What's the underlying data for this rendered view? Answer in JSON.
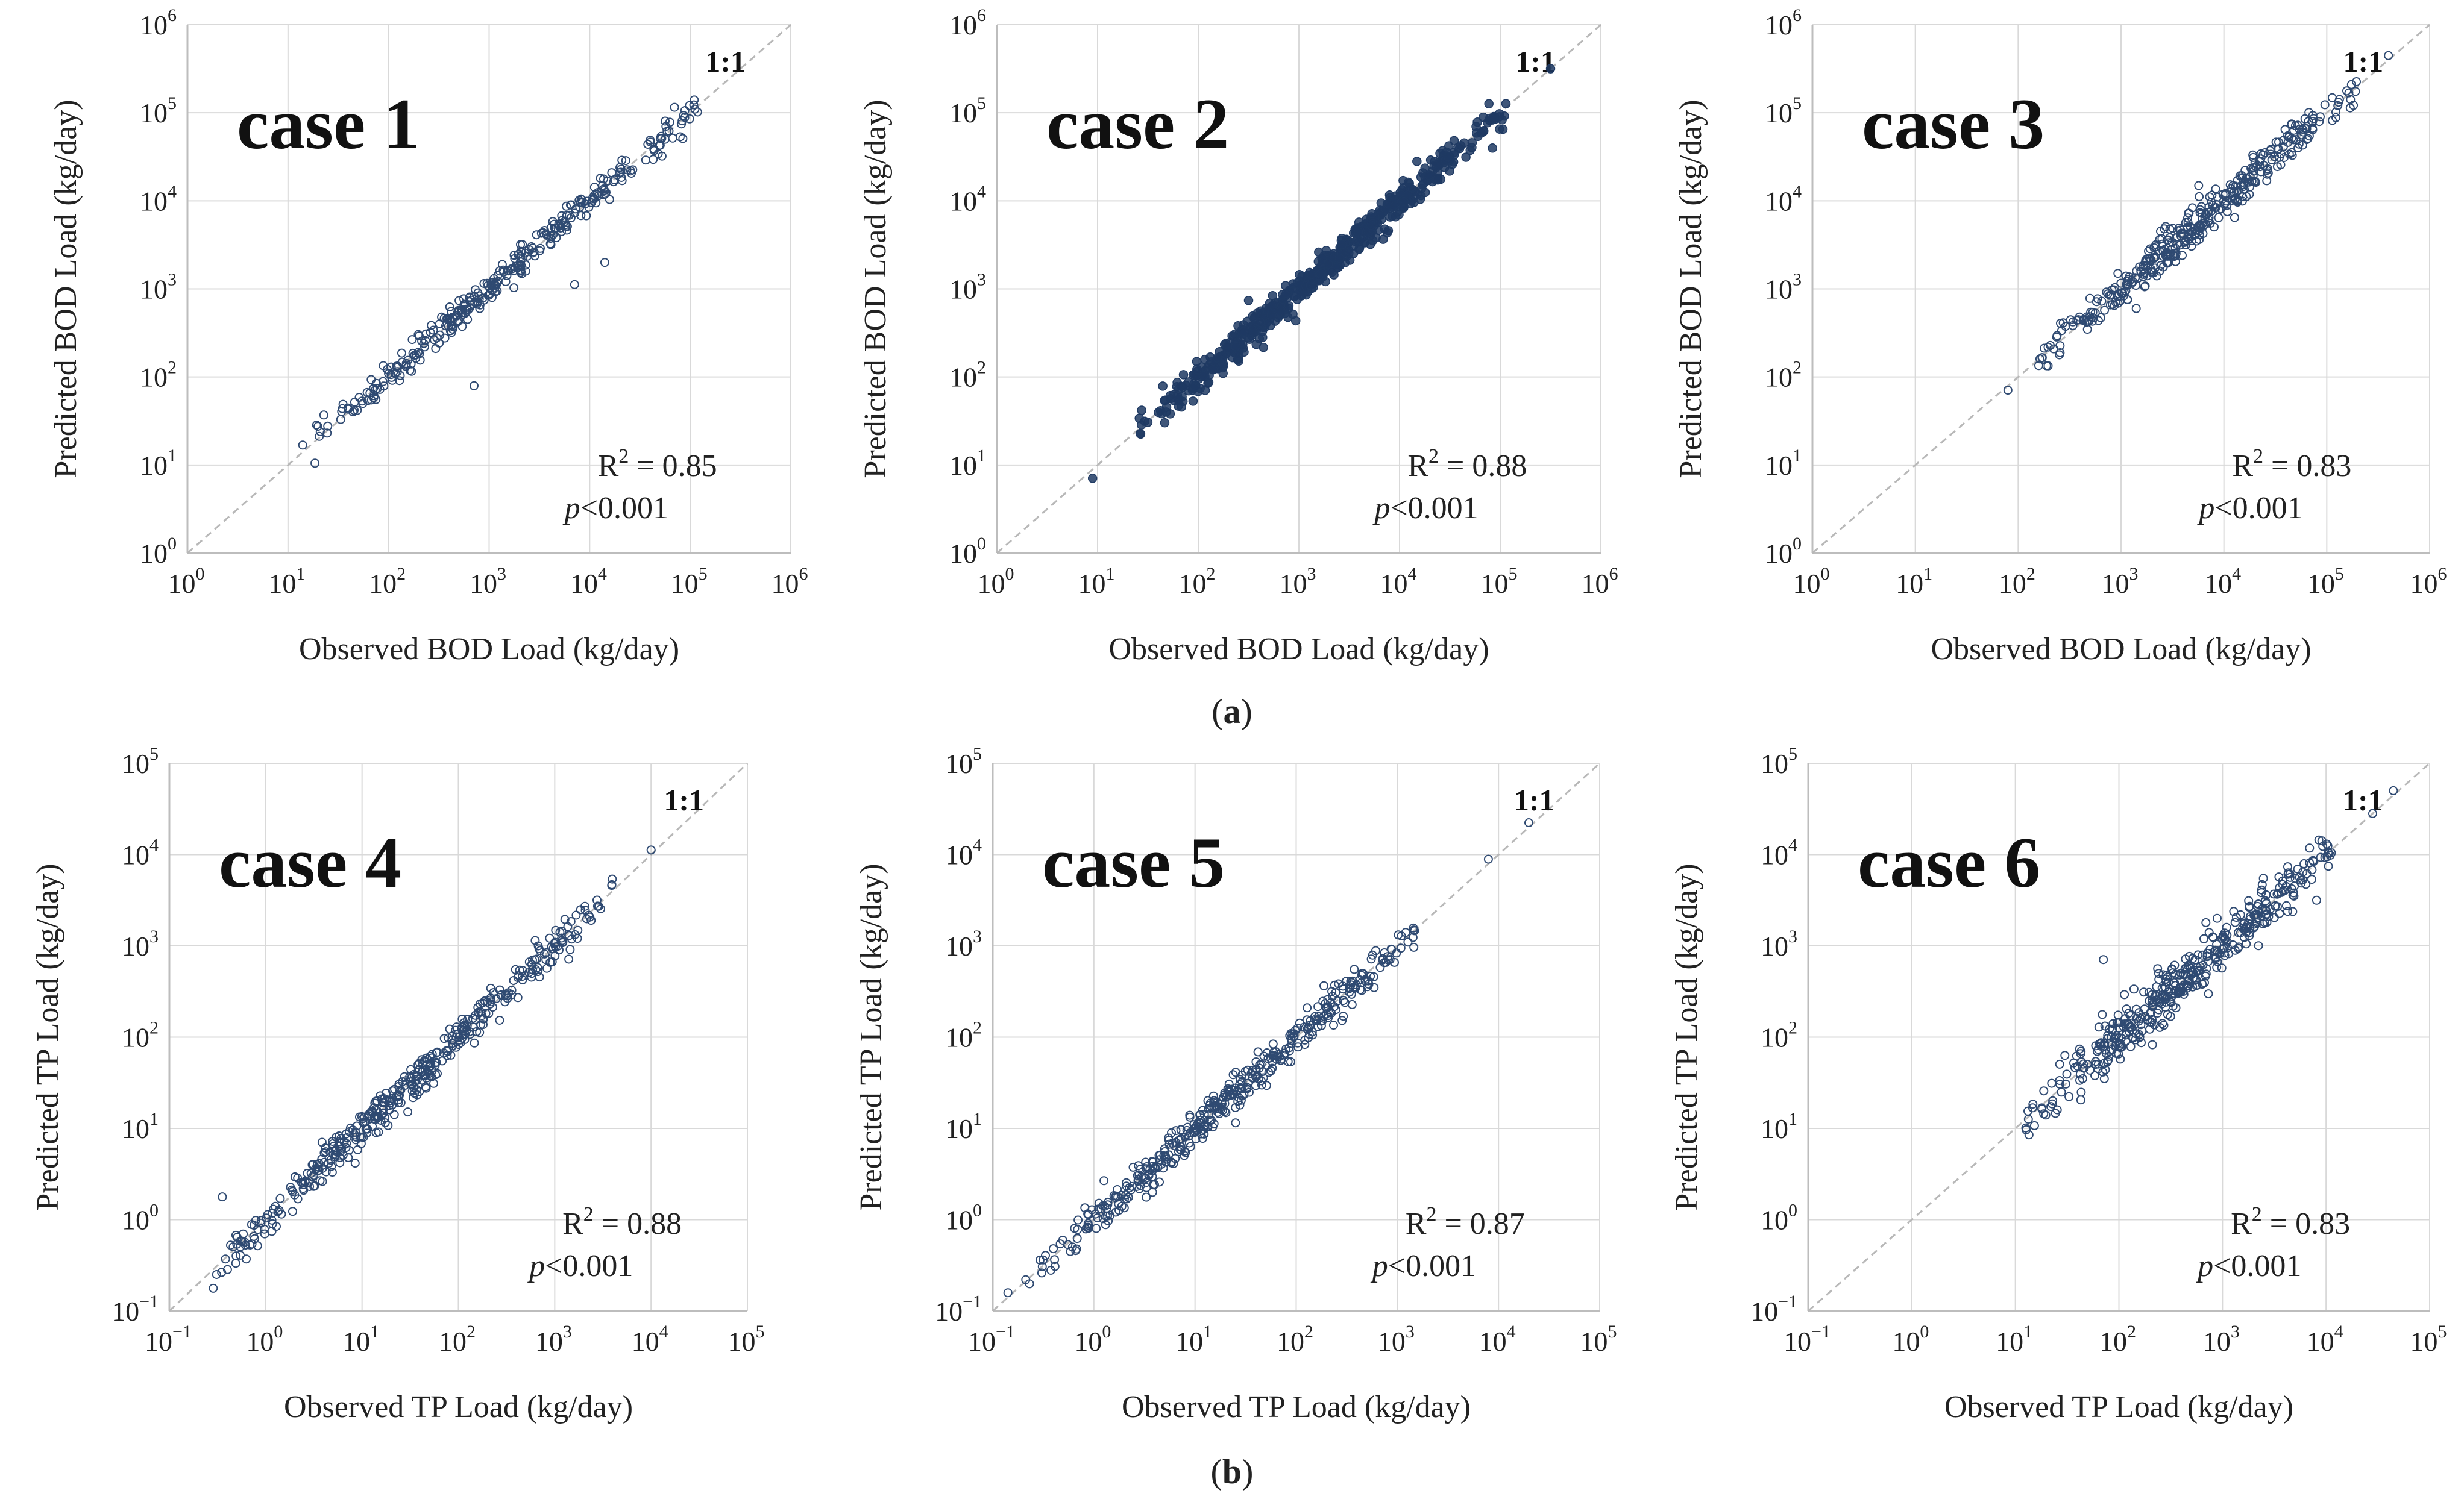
{
  "panel_labels": [
    "a",
    "b"
  ],
  "chart_data": [
    {
      "type": "scatter",
      "group": "a",
      "title": "case 1",
      "xlabel": "Observed BOD Load (kg/day)",
      "ylabel": "Predicted BOD Load (kg/day)",
      "log_scale": true,
      "xlim_exp": [
        0,
        6
      ],
      "ylim_exp": [
        0,
        6
      ],
      "tick_exponents": [
        0,
        1,
        2,
        3,
        4,
        5,
        6
      ],
      "reference_line": "1:1",
      "grid": true,
      "r2_text": "0.85",
      "p_text": "<0.001",
      "marker_color": "#2f4a72",
      "marker_filled": false,
      "cloud": {
        "x_range": [
          1.1,
          5.1
        ],
        "scatter": 0.09,
        "n": 330
      },
      "outliers": [
        [
          2.85,
          1.9
        ],
        [
          3.85,
          3.05
        ],
        [
          4.15,
          3.3
        ]
      ]
    },
    {
      "type": "scatter",
      "group": "a",
      "title": "case 2",
      "xlabel": "Observed BOD Load (kg/day)",
      "ylabel": "Predicted BOD Load (kg/day)",
      "log_scale": true,
      "xlim_exp": [
        0,
        6
      ],
      "ylim_exp": [
        0,
        6
      ],
      "tick_exponents": [
        0,
        1,
        2,
        3,
        4,
        5,
        6
      ],
      "reference_line": "1:1",
      "grid": true,
      "r2_text": "0.88",
      "p_text": "<0.001",
      "marker_color": "#1f3a63",
      "marker_filled": true,
      "cloud": {
        "x_range": [
          1.4,
          5.1
        ],
        "scatter": 0.1,
        "n": 560
      },
      "outliers": [
        [
          0.95,
          0.85
        ],
        [
          5.5,
          5.5
        ]
      ]
    },
    {
      "type": "scatter",
      "group": "a",
      "title": "case 3",
      "xlabel": "Observed BOD Load (kg/day)",
      "ylabel": "Predicted BOD Load (kg/day)",
      "log_scale": true,
      "xlim_exp": [
        0,
        6
      ],
      "ylim_exp": [
        0,
        6
      ],
      "tick_exponents": [
        0,
        1,
        2,
        3,
        4,
        5,
        6
      ],
      "reference_line": "1:1",
      "grid": true,
      "r2_text": "0.83",
      "p_text": "<0.001",
      "marker_color": "#2f4a72",
      "marker_filled": false,
      "cloud": {
        "x_range": [
          2.2,
          5.3
        ],
        "scatter": 0.11,
        "n": 380
      },
      "outliers": [
        [
          1.9,
          1.85
        ],
        [
          5.6,
          5.65
        ]
      ]
    },
    {
      "type": "scatter",
      "group": "b",
      "title": "case 4",
      "xlabel": "Observed TP Load (kg/day)",
      "ylabel": "Predicted TP Load (kg/day)",
      "log_scale": true,
      "xlim_exp": [
        -1,
        5
      ],
      "ylim_exp": [
        -1,
        5
      ],
      "tick_exponents": [
        -1,
        0,
        1,
        2,
        3,
        4,
        5
      ],
      "reference_line": "1:1",
      "grid": true,
      "r2_text": "0.88",
      "p_text": "<0.001",
      "marker_color": "#2f4a72",
      "marker_filled": false,
      "cloud": {
        "x_range": [
          -0.55,
          3.6
        ],
        "scatter": 0.1,
        "n": 420
      },
      "outliers": [
        [
          -0.45,
          0.25
        ],
        [
          4.0,
          4.05
        ]
      ]
    },
    {
      "type": "scatter",
      "group": "b",
      "title": "case 5",
      "xlabel": "Observed TP Load (kg/day)",
      "ylabel": "Predicted TP Load (kg/day)",
      "log_scale": true,
      "xlim_exp": [
        -1,
        5
      ],
      "ylim_exp": [
        -1,
        5
      ],
      "tick_exponents": [
        -1,
        0,
        1,
        2,
        3,
        4,
        5
      ],
      "reference_line": "1:1",
      "grid": true,
      "r2_text": "0.87",
      "p_text": "<0.001",
      "marker_color": "#2f4a72",
      "marker_filled": false,
      "cloud": {
        "x_range": [
          -0.7,
          3.2
        ],
        "scatter": 0.1,
        "n": 420
      },
      "outliers": [
        [
          -0.85,
          -0.8
        ],
        [
          3.9,
          3.95
        ],
        [
          4.3,
          4.35
        ]
      ]
    },
    {
      "type": "scatter",
      "group": "b",
      "title": "case 6",
      "xlabel": "Observed TP Load (kg/day)",
      "ylabel": "Predicted TP Load (kg/day)",
      "log_scale": true,
      "xlim_exp": [
        -1,
        5
      ],
      "ylim_exp": [
        -1,
        5
      ],
      "tick_exponents": [
        -1,
        0,
        1,
        2,
        3,
        4,
        5
      ],
      "reference_line": "1:1",
      "grid": true,
      "r2_text": "0.83",
      "p_text": "<0.001",
      "marker_color": "#2f4a72",
      "marker_filled": false,
      "cloud": {
        "x_range": [
          1.1,
          4.1
        ],
        "scatter": 0.14,
        "n": 430
      },
      "outliers": [
        [
          1.85,
          2.85
        ],
        [
          4.45,
          4.45
        ],
        [
          4.65,
          4.7
        ]
      ]
    }
  ]
}
